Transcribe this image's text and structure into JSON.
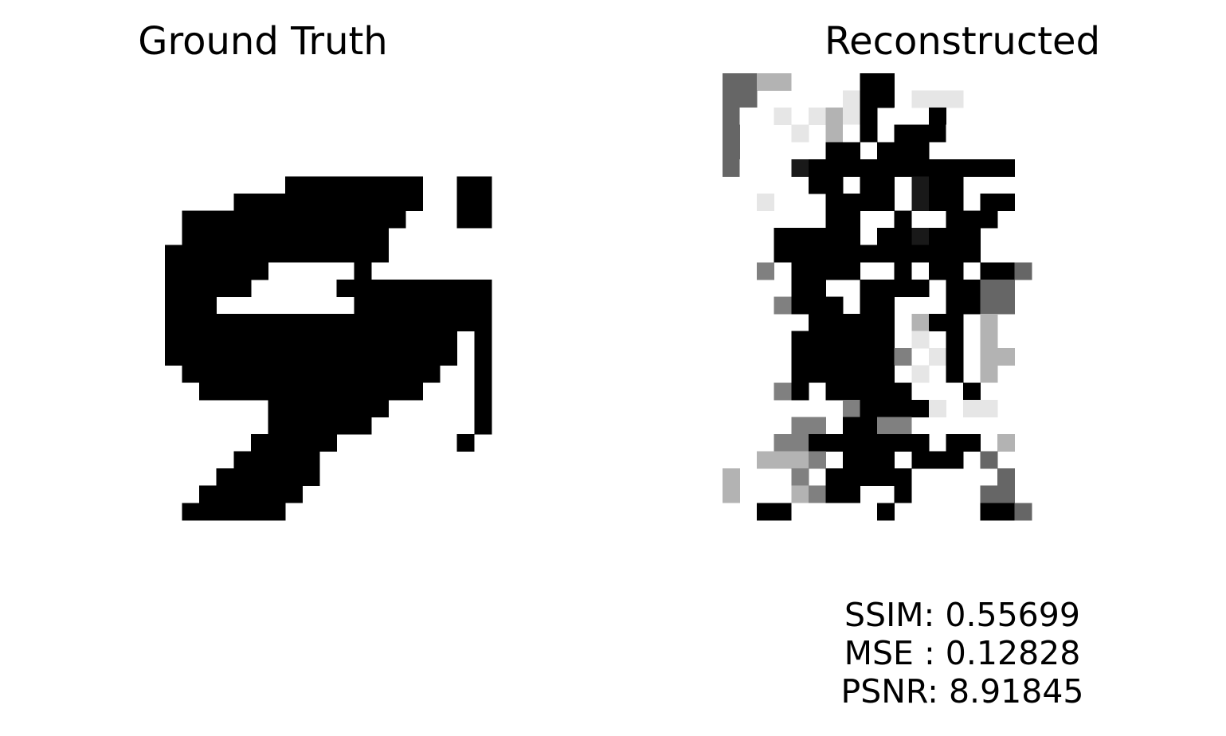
{
  "left_panel": {
    "title": "Ground Truth"
  },
  "right_panel": {
    "title": "Reconstructed"
  },
  "metrics": {
    "ssim": "SSIM: 0.55699",
    "mse": "MSE : 0.12828",
    "psnr": "PSNR: 8.91845"
  },
  "images": {
    "grid_size": 28,
    "ground_truth": [
      "............................",
      "............................",
      "............................",
      "............................",
      "............................",
      "..........................",
      "..............########..##..",
      "...........###########..##..",
      "........#############...##..",
      "........############........",
      ".......#############........",
      ".......######.....#.........",
      ".......#####.....#########..",
      ".......###........########..",
      ".......###################..",
      ".......#################.#..",
      ".......#################.#..",
      "........###############..#..",
      ".........#############...#..",
      ".............#######.....#..",
      ".............######......#..",
      "............#####.......#...",
      "...........#####............",
      "..........######............",
      ".........######.............",
      "........######..............",
      "............................",
      "............................"
    ],
    "reconstructed": [
      "6633...0##..0...",
      "66.....1##.111..",
      "60.1.131#.0.#..",
      "6...1.30#.###0..",
      "6.....##.###....",
      "60..9############",
      ".....##.##.9##.",
      "..1...####.9##.##",
      "......##..#..###.",
      "...#####.##9###..",
      "...############..",
      "..5.####..#.##.##6",
      "....##..####.##66",
      "...5###.##...##66",
      ".....#####.3##.3",
      "....######.1.#.3",
      "....######5.1#.33",
      "....######.1.#.3.",
      "...5#.#####...#..",
      ".......5####1.11",
      "....55.##55.....",
      "...55#######.##.3",
      "..3335.###.###.6",
      "3...5.#####.....6",
      "3...35##..#....66",
      "..##.....#.....##6",
      "............................",
      "............................"
    ]
  }
}
